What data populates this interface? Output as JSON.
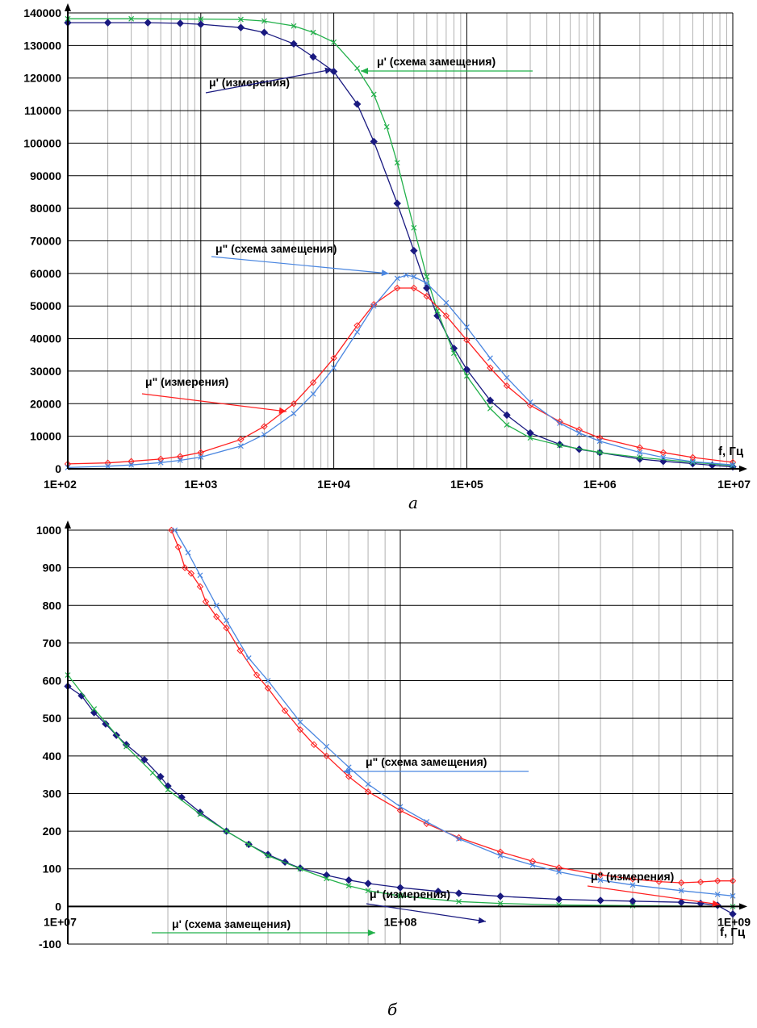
{
  "panels": [
    {
      "label": "а",
      "x_unit_label": "f, Гц",
      "annotations": [
        {
          "text": "μ' (схема замещения)",
          "series": "mu1_model"
        },
        {
          "text": "μ' (измерения)",
          "series": "mu1_meas"
        },
        {
          "text": "μ\" (схема замещения)",
          "series": "mu2_model"
        },
        {
          "text": "μ\" (измерения)",
          "series": "mu2_meas"
        }
      ]
    },
    {
      "label": "б",
      "x_unit_label": "f, Гц",
      "annotations": [
        {
          "text": "μ\" (схема замещения)",
          "series": "mu2_model"
        },
        {
          "text": "μ\" (измерения)",
          "series": "mu2_meas"
        },
        {
          "text": "μ' (измерения)",
          "series": "mu1_meas"
        },
        {
          "text": "μ' (схема замещения)",
          "series": "mu1_model"
        }
      ]
    }
  ],
  "colors": {
    "mu1_meas": "#1a1a80",
    "mu1_model": "#22b04a",
    "mu2_meas": "#ff2020",
    "mu2_model": "#4a86e0"
  },
  "chart_data": [
    {
      "type": "line",
      "x_scale": "log",
      "xlim": [
        100,
        10000000
      ],
      "ylim": [
        0,
        140000
      ],
      "x_tick_labels": [
        "1E+02",
        "1E+03",
        "1E+04",
        "1E+05",
        "1E+06",
        "1E+07"
      ],
      "y_tick_labels": [
        "0",
        "10000",
        "20000",
        "30000",
        "40000",
        "50000",
        "60000",
        "70000",
        "80000",
        "90000",
        "100000",
        "110000",
        "120000",
        "130000",
        "140000"
      ],
      "grid": true,
      "series": [
        {
          "key": "mu1_meas",
          "marker": "diamond",
          "points": [
            [
              100,
              137000
            ],
            [
              200,
              137000
            ],
            [
              400,
              137000
            ],
            [
              700,
              136800
            ],
            [
              1000,
              136500
            ],
            [
              2000,
              135500
            ],
            [
              3000,
              134000
            ],
            [
              5000,
              130500
            ],
            [
              7000,
              126500
            ],
            [
              10000,
              122000
            ],
            [
              15000,
              112000
            ],
            [
              20000,
              100500
            ],
            [
              30000,
              81500
            ],
            [
              40000,
              67000
            ],
            [
              50000,
              55500
            ],
            [
              60000,
              47000
            ],
            [
              80000,
              37000
            ],
            [
              100000,
              30500
            ],
            [
              150000,
              21000
            ],
            [
              200000,
              16500
            ],
            [
              300000,
              11000
            ],
            [
              500000,
              7500
            ],
            [
              700000,
              6000
            ],
            [
              1000000,
              5000
            ],
            [
              2000000,
              3000
            ],
            [
              3000000,
              2300
            ],
            [
              5000000,
              1600
            ],
            [
              7000000,
              1100
            ],
            [
              10000000,
              600
            ]
          ]
        },
        {
          "key": "mu1_model",
          "marker": "x",
          "points": [
            [
              100,
              138200
            ],
            [
              300,
              138200
            ],
            [
              1000,
              138100
            ],
            [
              2000,
              138000
            ],
            [
              3000,
              137500
            ],
            [
              5000,
              136000
            ],
            [
              7000,
              134000
            ],
            [
              10000,
              131000
            ],
            [
              15000,
              123000
            ],
            [
              20000,
              115000
            ],
            [
              25000,
              105000
            ],
            [
              30000,
              94000
            ],
            [
              40000,
              74000
            ],
            [
              50000,
              59000
            ],
            [
              60000,
              48500
            ],
            [
              80000,
              35500
            ],
            [
              100000,
              28500
            ],
            [
              150000,
              18500
            ],
            [
              200000,
              13500
            ],
            [
              300000,
              9500
            ],
            [
              500000,
              7200
            ],
            [
              1000000,
              5000
            ],
            [
              2000000,
              3500
            ],
            [
              5000000,
              2000
            ],
            [
              10000000,
              1000
            ]
          ]
        },
        {
          "key": "mu2_meas",
          "marker": "diamond-open",
          "points": [
            [
              100,
              1500
            ],
            [
              200,
              1800
            ],
            [
              300,
              2300
            ],
            [
              500,
              3000
            ],
            [
              700,
              3800
            ],
            [
              1000,
              5000
            ],
            [
              2000,
              9000
            ],
            [
              3000,
              13000
            ],
            [
              5000,
              20000
            ],
            [
              7000,
              26500
            ],
            [
              10000,
              34000
            ],
            [
              15000,
              44000
            ],
            [
              20000,
              50500
            ],
            [
              30000,
              55500
            ],
            [
              40000,
              55500
            ],
            [
              50000,
              53000
            ],
            [
              70000,
              47000
            ],
            [
              100000,
              39500
            ],
            [
              150000,
              31000
            ],
            [
              200000,
              25500
            ],
            [
              300000,
              19500
            ],
            [
              500000,
              14500
            ],
            [
              700000,
              12000
            ],
            [
              1000000,
              9500
            ],
            [
              2000000,
              6500
            ],
            [
              3000000,
              5000
            ],
            [
              5000000,
              3500
            ],
            [
              10000000,
              2000
            ]
          ]
        },
        {
          "key": "mu2_model",
          "marker": "x",
          "points": [
            [
              100,
              400
            ],
            [
              200,
              800
            ],
            [
              300,
              1200
            ],
            [
              500,
              1900
            ],
            [
              700,
              2600
            ],
            [
              1000,
              3600
            ],
            [
              2000,
              7000
            ],
            [
              3000,
              10500
            ],
            [
              5000,
              17000
            ],
            [
              7000,
              23000
            ],
            [
              10000,
              31000
            ],
            [
              15000,
              42000
            ],
            [
              20000,
              50000
            ],
            [
              30000,
              58500
            ],
            [
              35000,
              59500
            ],
            [
              40000,
              59000
            ],
            [
              50000,
              57000
            ],
            [
              70000,
              51000
            ],
            [
              100000,
              43500
            ],
            [
              150000,
              34000
            ],
            [
              200000,
              28000
            ],
            [
              300000,
              20500
            ],
            [
              500000,
              14000
            ],
            [
              700000,
              11000
            ],
            [
              1000000,
              8500
            ],
            [
              2000000,
              5000
            ],
            [
              3000000,
              3500
            ],
            [
              5000000,
              2200
            ],
            [
              10000000,
              1200
            ]
          ]
        }
      ]
    },
    {
      "type": "line",
      "x_scale": "log",
      "xlim": [
        10000000,
        1000000000
      ],
      "ylim": [
        -100,
        1000
      ],
      "x_tick_labels": [
        "1E+07",
        "1E+08",
        "1E+09"
      ],
      "y_tick_labels": [
        "-100",
        "0",
        "100",
        "200",
        "300",
        "400",
        "500",
        "600",
        "700",
        "800",
        "900",
        "1000"
      ],
      "grid": true,
      "series": [
        {
          "key": "mu1_meas",
          "marker": "diamond",
          "points": [
            [
              10000000,
              585
            ],
            [
              11000000,
              560
            ],
            [
              12000000,
              515
            ],
            [
              13000000,
              485
            ],
            [
              14000000,
              455
            ],
            [
              15000000,
              430
            ],
            [
              17000000,
              390
            ],
            [
              19000000,
              345
            ],
            [
              20000000,
              320
            ],
            [
              22000000,
              290
            ],
            [
              25000000,
              250
            ],
            [
              30000000,
              200
            ],
            [
              35000000,
              165
            ],
            [
              40000000,
              138
            ],
            [
              45000000,
              118
            ],
            [
              50000000,
              102
            ],
            [
              60000000,
              83
            ],
            [
              70000000,
              70
            ],
            [
              80000000,
              61
            ],
            [
              100000000,
              50
            ],
            [
              130000000,
              40
            ],
            [
              150000000,
              35
            ],
            [
              200000000,
              27
            ],
            [
              300000000,
              19
            ],
            [
              400000000,
              16
            ],
            [
              500000000,
              14
            ],
            [
              700000000,
              11
            ],
            [
              800000000,
              8
            ],
            [
              900000000,
              3
            ],
            [
              1000000000,
              -20
            ]
          ]
        },
        {
          "key": "mu1_model",
          "marker": "x",
          "points": [
            [
              10000000,
              615
            ],
            [
              12000000,
              525
            ],
            [
              15000000,
              425
            ],
            [
              18000000,
              355
            ],
            [
              20000000,
              310
            ],
            [
              25000000,
              245
            ],
            [
              30000000,
              200
            ],
            [
              35000000,
              165
            ],
            [
              40000000,
              135
            ],
            [
              50000000,
              100
            ],
            [
              60000000,
              74
            ],
            [
              70000000,
              55
            ],
            [
              80000000,
              42
            ],
            [
              100000000,
              28
            ],
            [
              150000000,
              13
            ],
            [
              200000000,
              8
            ],
            [
              300000000,
              4
            ],
            [
              500000000,
              2
            ],
            [
              1000000000,
              0
            ]
          ]
        },
        {
          "key": "mu2_meas",
          "marker": "diamond-open",
          "points": [
            [
              20500000,
              1000
            ],
            [
              21500000,
              955
            ],
            [
              22500000,
              900
            ],
            [
              23500000,
              885
            ],
            [
              25000000,
              850
            ],
            [
              26000000,
              810
            ],
            [
              28000000,
              770
            ],
            [
              30000000,
              740
            ],
            [
              33000000,
              680
            ],
            [
              37000000,
              615
            ],
            [
              40000000,
              580
            ],
            [
              45000000,
              520
            ],
            [
              50000000,
              470
            ],
            [
              55000000,
              430
            ],
            [
              60000000,
              400
            ],
            [
              70000000,
              345
            ],
            [
              80000000,
              305
            ],
            [
              100000000,
              255
            ],
            [
              120000000,
              220
            ],
            [
              150000000,
              183
            ],
            [
              200000000,
              145
            ],
            [
              250000000,
              120
            ],
            [
              300000000,
              103
            ],
            [
              400000000,
              84
            ],
            [
              500000000,
              73
            ],
            [
              600000000,
              66
            ],
            [
              700000000,
              63
            ],
            [
              800000000,
              65
            ],
            [
              900000000,
              68
            ],
            [
              1000000000,
              68
            ]
          ]
        },
        {
          "key": "mu2_model",
          "marker": "x",
          "points": [
            [
              21000000,
              1000
            ],
            [
              23000000,
              940
            ],
            [
              25000000,
              880
            ],
            [
              28000000,
              800
            ],
            [
              30000000,
              760
            ],
            [
              35000000,
              660
            ],
            [
              40000000,
              600
            ],
            [
              50000000,
              490
            ],
            [
              60000000,
              425
            ],
            [
              70000000,
              370
            ],
            [
              80000000,
              325
            ],
            [
              100000000,
              265
            ],
            [
              120000000,
              225
            ],
            [
              150000000,
              180
            ],
            [
              200000000,
              135
            ],
            [
              250000000,
              110
            ],
            [
              300000000,
              92
            ],
            [
              400000000,
              70
            ],
            [
              500000000,
              57
            ],
            [
              700000000,
              42
            ],
            [
              900000000,
              32
            ],
            [
              1000000000,
              28
            ]
          ]
        }
      ]
    }
  ]
}
